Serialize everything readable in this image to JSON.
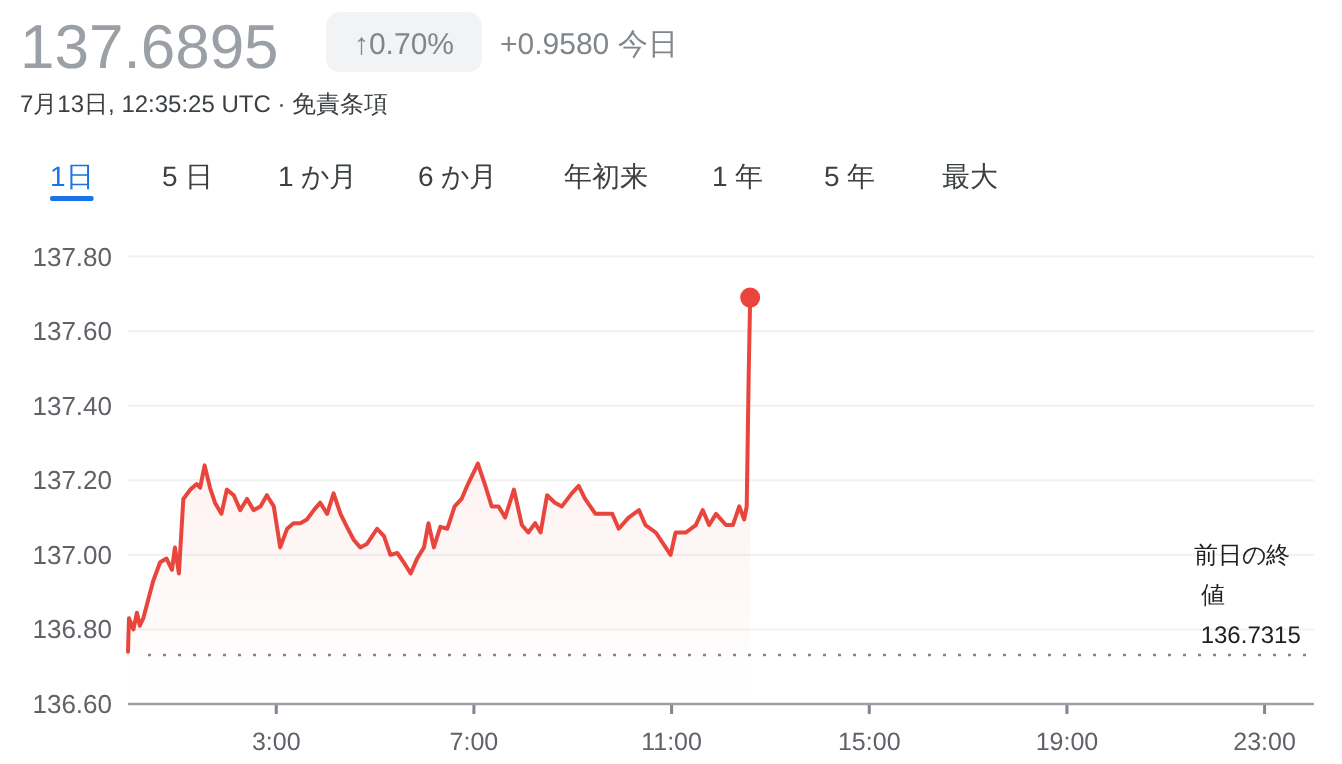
{
  "chart_data": {
    "type": "area",
    "title": "137.6895",
    "subtitle": "7月13日, 12:35:25 UTC · 免責条項",
    "annotations": [
      "↑0.70%",
      "+0.9580 今日",
      "1日",
      "5 日",
      "1 か月",
      "6 か月",
      "年初来",
      "1 年",
      "5 年",
      "最大"
    ],
    "xlim": [
      0,
      24
    ],
    "ylim": [
      136.6,
      137.8
    ],
    "xticks": [
      {
        "value": 3,
        "label": "3:00"
      },
      {
        "value": 7,
        "label": "7:00"
      },
      {
        "value": 11,
        "label": "11:00"
      },
      {
        "value": 15,
        "label": "15:00"
      },
      {
        "value": 19,
        "label": "19:00"
      },
      {
        "value": 23,
        "label": "23:00"
      }
    ],
    "yticks": [
      {
        "value": 136.6,
        "label": "136.60"
      },
      {
        "value": 136.8,
        "label": "136.80"
      },
      {
        "value": 137.0,
        "label": "137.00"
      },
      {
        "value": 137.2,
        "label": "137.20"
      },
      {
        "value": 137.4,
        "label": "137.40"
      },
      {
        "value": 137.6,
        "label": "137.60"
      },
      {
        "value": 137.8,
        "label": "137.80"
      }
    ],
    "grid": "y",
    "ref_lines": [
      {
        "axis": "y",
        "value": 136.7315,
        "label": "前日の終値 136.7315",
        "line_style": "dotted",
        "color": "#80868b"
      }
    ],
    "series": [
      {
        "color": "#e8453c",
        "x": [
          0.0,
          0.02,
          0.11,
          0.18,
          0.24,
          0.31,
          0.41,
          0.51,
          0.65,
          0.78,
          0.89,
          0.95,
          1.03,
          1.12,
          1.26,
          1.39,
          1.46,
          1.55,
          1.66,
          1.76,
          1.89,
          2.0,
          2.14,
          2.27,
          2.41,
          2.54,
          2.68,
          2.81,
          2.95,
          3.08,
          3.22,
          3.35,
          3.49,
          3.62,
          3.76,
          3.89,
          4.03,
          4.16,
          4.3,
          4.43,
          4.57,
          4.7,
          4.84,
          5.04,
          5.18,
          5.31,
          5.45,
          5.58,
          5.72,
          5.85,
          5.99,
          6.08,
          6.19,
          6.32,
          6.46,
          6.61,
          6.75,
          6.88,
          7.08,
          7.22,
          7.36,
          7.5,
          7.63,
          7.81,
          7.97,
          8.1,
          8.24,
          8.35,
          8.48,
          8.64,
          8.78,
          8.98,
          9.12,
          9.25,
          9.46,
          9.66,
          9.8,
          9.93,
          10.13,
          10.34,
          10.47,
          10.68,
          10.88,
          10.98,
          11.08,
          11.29,
          11.49,
          11.63,
          11.76,
          11.9,
          12.1,
          12.24,
          12.37,
          12.47,
          12.52,
          12.56,
          12.59
        ],
        "values": [
          136.74,
          136.83,
          136.8,
          136.845,
          136.81,
          136.83,
          136.88,
          136.93,
          136.98,
          136.99,
          136.96,
          137.02,
          136.95,
          137.15,
          137.175,
          137.19,
          137.18,
          137.24,
          137.18,
          137.14,
          137.11,
          137.175,
          137.16,
          137.12,
          137.15,
          137.12,
          137.13,
          137.16,
          137.13,
          137.02,
          137.07,
          137.085,
          137.085,
          137.095,
          137.12,
          137.14,
          137.11,
          137.165,
          137.11,
          137.075,
          137.04,
          137.02,
          137.03,
          137.07,
          137.05,
          137.0,
          137.005,
          136.98,
          136.95,
          136.99,
          137.02,
          137.085,
          137.02,
          137.075,
          137.07,
          137.13,
          137.15,
          137.19,
          137.245,
          137.19,
          137.13,
          137.13,
          137.1,
          137.175,
          137.08,
          137.06,
          137.085,
          137.06,
          137.16,
          137.14,
          137.13,
          137.165,
          137.185,
          137.15,
          137.11,
          137.11,
          137.11,
          137.07,
          137.1,
          137.12,
          137.08,
          137.06,
          137.02,
          137.0,
          137.06,
          137.06,
          137.08,
          137.12,
          137.08,
          137.11,
          137.08,
          137.08,
          137.13,
          137.095,
          137.13,
          137.48,
          137.69
        ]
      }
    ]
  }
}
